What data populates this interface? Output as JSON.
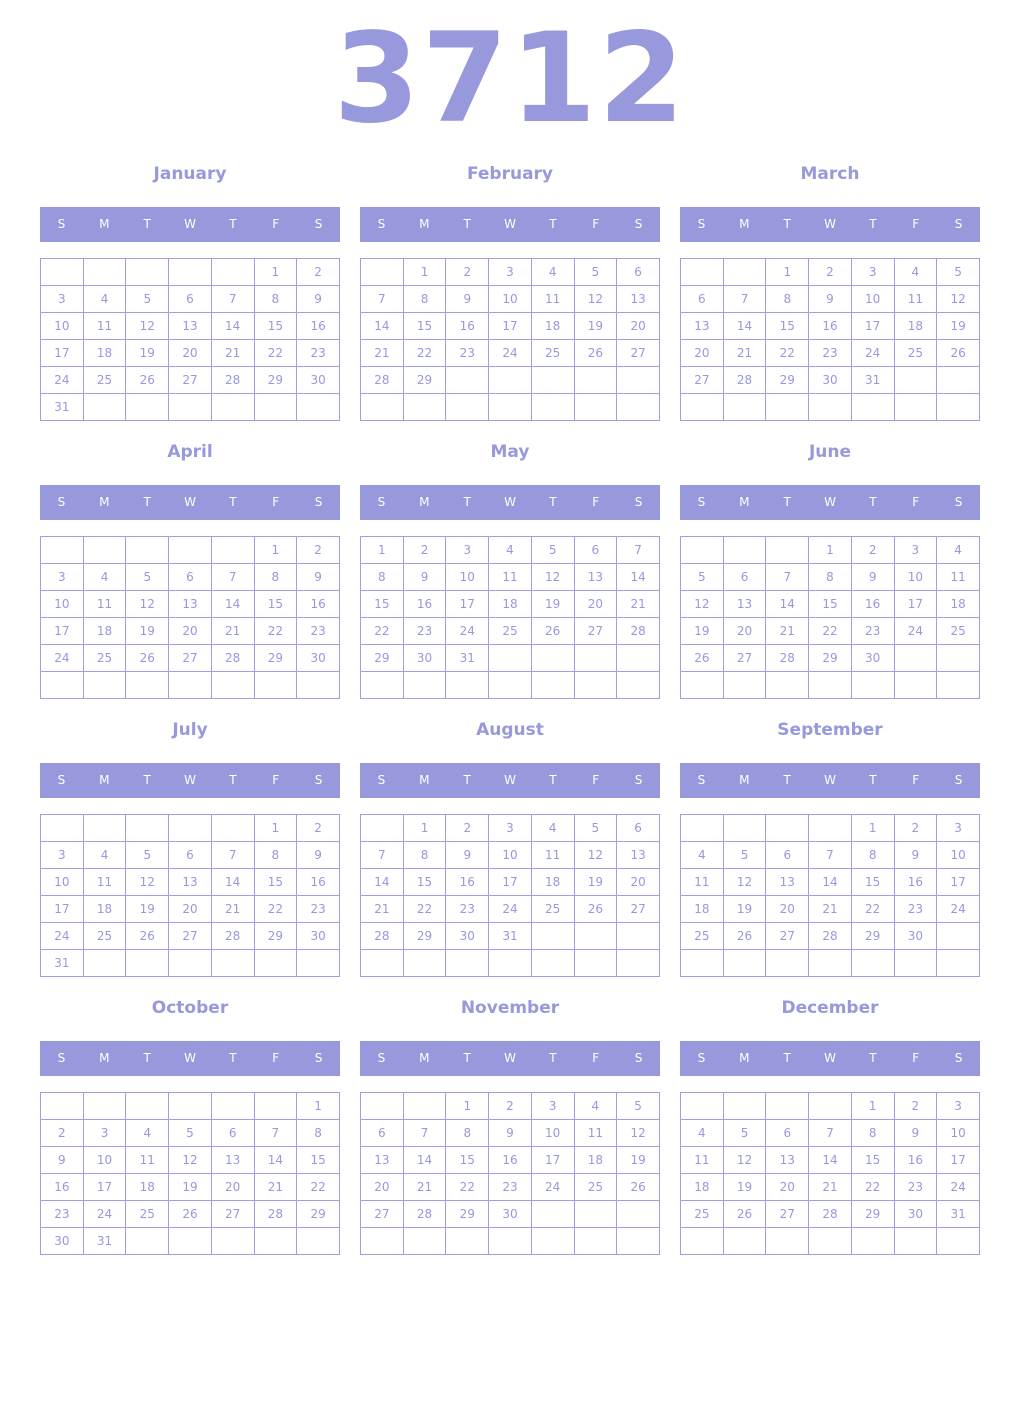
{
  "year": "3712",
  "weekdays": [
    "S",
    "M",
    "T",
    "W",
    "T",
    "F",
    "S"
  ],
  "colors": {
    "accent": "#9898dc"
  },
  "months": [
    {
      "name": "January",
      "weeks": [
        [
          "",
          "",
          "",
          "",
          "",
          "1",
          "2"
        ],
        [
          "3",
          "4",
          "5",
          "6",
          "7",
          "8",
          "9"
        ],
        [
          "10",
          "11",
          "12",
          "13",
          "14",
          "15",
          "16"
        ],
        [
          "17",
          "18",
          "19",
          "20",
          "21",
          "22",
          "23"
        ],
        [
          "24",
          "25",
          "26",
          "27",
          "28",
          "29",
          "30"
        ],
        [
          "31",
          "",
          "",
          "",
          "",
          "",
          ""
        ]
      ]
    },
    {
      "name": "February",
      "weeks": [
        [
          "",
          "1",
          "2",
          "3",
          "4",
          "5",
          "6"
        ],
        [
          "7",
          "8",
          "9",
          "10",
          "11",
          "12",
          "13"
        ],
        [
          "14",
          "15",
          "16",
          "17",
          "18",
          "19",
          "20"
        ],
        [
          "21",
          "22",
          "23",
          "24",
          "25",
          "26",
          "27"
        ],
        [
          "28",
          "29",
          "",
          "",
          "",
          "",
          ""
        ],
        [
          "",
          "",
          "",
          "",
          "",
          "",
          ""
        ]
      ]
    },
    {
      "name": "March",
      "weeks": [
        [
          "",
          "",
          "1",
          "2",
          "3",
          "4",
          "5"
        ],
        [
          "6",
          "7",
          "8",
          "9",
          "10",
          "11",
          "12"
        ],
        [
          "13",
          "14",
          "15",
          "16",
          "17",
          "18",
          "19"
        ],
        [
          "20",
          "21",
          "22",
          "23",
          "24",
          "25",
          "26"
        ],
        [
          "27",
          "28",
          "29",
          "30",
          "31",
          "",
          ""
        ],
        [
          "",
          "",
          "",
          "",
          "",
          "",
          ""
        ]
      ]
    },
    {
      "name": "April",
      "weeks": [
        [
          "",
          "",
          "",
          "",
          "",
          "1",
          "2"
        ],
        [
          "3",
          "4",
          "5",
          "6",
          "7",
          "8",
          "9"
        ],
        [
          "10",
          "11",
          "12",
          "13",
          "14",
          "15",
          "16"
        ],
        [
          "17",
          "18",
          "19",
          "20",
          "21",
          "22",
          "23"
        ],
        [
          "24",
          "25",
          "26",
          "27",
          "28",
          "29",
          "30"
        ],
        [
          "",
          "",
          "",
          "",
          "",
          "",
          ""
        ]
      ]
    },
    {
      "name": "May",
      "weeks": [
        [
          "1",
          "2",
          "3",
          "4",
          "5",
          "6",
          "7"
        ],
        [
          "8",
          "9",
          "10",
          "11",
          "12",
          "13",
          "14"
        ],
        [
          "15",
          "16",
          "17",
          "18",
          "19",
          "20",
          "21"
        ],
        [
          "22",
          "23",
          "24",
          "25",
          "26",
          "27",
          "28"
        ],
        [
          "29",
          "30",
          "31",
          "",
          "",
          "",
          ""
        ],
        [
          "",
          "",
          "",
          "",
          "",
          "",
          ""
        ]
      ]
    },
    {
      "name": "June",
      "weeks": [
        [
          "",
          "",
          "",
          "1",
          "2",
          "3",
          "4"
        ],
        [
          "5",
          "6",
          "7",
          "8",
          "9",
          "10",
          "11"
        ],
        [
          "12",
          "13",
          "14",
          "15",
          "16",
          "17",
          "18"
        ],
        [
          "19",
          "20",
          "21",
          "22",
          "23",
          "24",
          "25"
        ],
        [
          "26",
          "27",
          "28",
          "29",
          "30",
          "",
          ""
        ],
        [
          "",
          "",
          "",
          "",
          "",
          "",
          ""
        ]
      ]
    },
    {
      "name": "July",
      "weeks": [
        [
          "",
          "",
          "",
          "",
          "",
          "1",
          "2"
        ],
        [
          "3",
          "4",
          "5",
          "6",
          "7",
          "8",
          "9"
        ],
        [
          "10",
          "11",
          "12",
          "13",
          "14",
          "15",
          "16"
        ],
        [
          "17",
          "18",
          "19",
          "20",
          "21",
          "22",
          "23"
        ],
        [
          "24",
          "25",
          "26",
          "27",
          "28",
          "29",
          "30"
        ],
        [
          "31",
          "",
          "",
          "",
          "",
          "",
          ""
        ]
      ]
    },
    {
      "name": "August",
      "weeks": [
        [
          "",
          "1",
          "2",
          "3",
          "4",
          "5",
          "6"
        ],
        [
          "7",
          "8",
          "9",
          "10",
          "11",
          "12",
          "13"
        ],
        [
          "14",
          "15",
          "16",
          "17",
          "18",
          "19",
          "20"
        ],
        [
          "21",
          "22",
          "23",
          "24",
          "25",
          "26",
          "27"
        ],
        [
          "28",
          "29",
          "30",
          "31",
          "",
          "",
          ""
        ],
        [
          "",
          "",
          "",
          "",
          "",
          "",
          ""
        ]
      ]
    },
    {
      "name": "September",
      "weeks": [
        [
          "",
          "",
          "",
          "",
          "1",
          "2",
          "3"
        ],
        [
          "4",
          "5",
          "6",
          "7",
          "8",
          "9",
          "10"
        ],
        [
          "11",
          "12",
          "13",
          "14",
          "15",
          "16",
          "17"
        ],
        [
          "18",
          "19",
          "20",
          "21",
          "22",
          "23",
          "24"
        ],
        [
          "25",
          "26",
          "27",
          "28",
          "29",
          "30",
          ""
        ],
        [
          "",
          "",
          "",
          "",
          "",
          "",
          ""
        ]
      ]
    },
    {
      "name": "October",
      "weeks": [
        [
          "",
          "",
          "",
          "",
          "",
          "",
          "1"
        ],
        [
          "2",
          "3",
          "4",
          "5",
          "6",
          "7",
          "8"
        ],
        [
          "9",
          "10",
          "11",
          "12",
          "13",
          "14",
          "15"
        ],
        [
          "16",
          "17",
          "18",
          "19",
          "20",
          "21",
          "22"
        ],
        [
          "23",
          "24",
          "25",
          "26",
          "27",
          "28",
          "29"
        ],
        [
          "30",
          "31",
          "",
          "",
          "",
          "",
          ""
        ]
      ]
    },
    {
      "name": "November",
      "weeks": [
        [
          "",
          "",
          "1",
          "2",
          "3",
          "4",
          "5"
        ],
        [
          "6",
          "7",
          "8",
          "9",
          "10",
          "11",
          "12"
        ],
        [
          "13",
          "14",
          "15",
          "16",
          "17",
          "18",
          "19"
        ],
        [
          "20",
          "21",
          "22",
          "23",
          "24",
          "25",
          "26"
        ],
        [
          "27",
          "28",
          "29",
          "30",
          "",
          "",
          ""
        ],
        [
          "",
          "",
          "",
          "",
          "",
          "",
          ""
        ]
      ]
    },
    {
      "name": "December",
      "weeks": [
        [
          "",
          "",
          "",
          "",
          "1",
          "2",
          "3"
        ],
        [
          "4",
          "5",
          "6",
          "7",
          "8",
          "9",
          "10"
        ],
        [
          "11",
          "12",
          "13",
          "14",
          "15",
          "16",
          "17"
        ],
        [
          "18",
          "19",
          "20",
          "21",
          "22",
          "23",
          "24"
        ],
        [
          "25",
          "26",
          "27",
          "28",
          "29",
          "30",
          "31"
        ],
        [
          "",
          "",
          "",
          "",
          "",
          "",
          ""
        ]
      ]
    }
  ]
}
